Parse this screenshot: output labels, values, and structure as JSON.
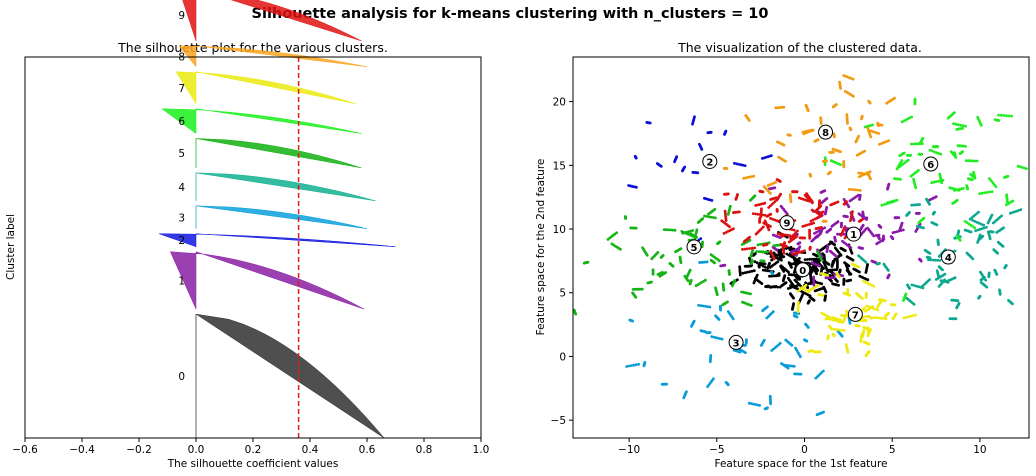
{
  "suptitle": "Silhouette analysis for k-means clustering with n_clusters = 10",
  "chart_data": [
    {
      "type": "area",
      "title": "The silhouette plot for the various clusters.",
      "xlabel": "The silhouette coefficient values",
      "ylabel": "Cluster label",
      "xlim": [
        -0.6,
        1.0
      ],
      "xticks": [
        -0.6,
        -0.4,
        -0.2,
        0.0,
        0.2,
        0.4,
        0.6,
        0.8,
        1.0
      ],
      "xtick_labels": [
        "−0.6",
        "−0.4",
        "−0.2",
        "0.0",
        "0.2",
        "0.4",
        "0.6",
        "0.8",
        "1.0"
      ],
      "yticks": "none",
      "average_silhouette": 0.36,
      "average_line_color": "#e8191c",
      "clusters": [
        {
          "label": "0",
          "color": "#303030",
          "max": 0.66,
          "min": 0.0,
          "size": 0.38
        },
        {
          "label": "1",
          "color": "#8a1fa3",
          "max": 0.59,
          "min": -0.09,
          "size": 0.176
        },
        {
          "label": "2",
          "color": "#1217e0",
          "max": 0.7,
          "min": -0.13,
          "size": 0.04
        },
        {
          "label": "3",
          "color": "#0aa0dc",
          "max": 0.6,
          "min": 0.0,
          "size": 0.07
        },
        {
          "label": "4",
          "color": "#10b090",
          "max": 0.63,
          "min": 0.0,
          "size": 0.086
        },
        {
          "label": "5",
          "color": "#10b010",
          "max": 0.58,
          "min": 0.0,
          "size": 0.09
        },
        {
          "label": "6",
          "color": "#1af01a",
          "max": 0.58,
          "min": -0.12,
          "size": 0.076
        },
        {
          "label": "7",
          "color": "#eaea10",
          "max": 0.56,
          "min": -0.07,
          "size": 0.098
        },
        {
          "label": "8",
          "color": "#fca51f",
          "max": 0.6,
          "min": -0.06,
          "size": 0.064
        },
        {
          "label": "9",
          "color": "#e01212",
          "max": 0.58,
          "min": -0.06,
          "size": 0.16
        }
      ]
    },
    {
      "type": "scatter",
      "title": "The visualization of the clustered data.",
      "xlabel": "Feature space for the 1st feature",
      "ylabel": "Feature space for the 2nd feature",
      "xlim": [
        -13.2,
        12.8
      ],
      "ylim": [
        -6.4,
        23.5
      ],
      "xticks": [
        -10,
        -5,
        0,
        5,
        10
      ],
      "xtick_labels": [
        "−10",
        "−5",
        "0",
        "5",
        "10"
      ],
      "yticks": [
        -5,
        0,
        5,
        10,
        15,
        20
      ],
      "ytick_labels": [
        "−5",
        "0",
        "5",
        "10",
        "15",
        "20"
      ],
      "clusters": [
        {
          "label": "0",
          "color": "#000000",
          "center": [
            -0.1,
            6.8
          ],
          "spread": [
            1.8,
            1.1
          ],
          "n": 700,
          "shape": "blob"
        },
        {
          "label": "1",
          "color": "#8b18a8",
          "center": [
            2.8,
            9.6
          ],
          "spread": [
            2.2,
            1.6
          ],
          "n": 380,
          "shape": "fan"
        },
        {
          "label": "2",
          "color": "#0c10d8",
          "center": [
            -5.4,
            15.3
          ],
          "spread": [
            2.0,
            2.4
          ],
          "n": 90,
          "shape": "scatter"
        },
        {
          "label": "3",
          "color": "#0a9cd8",
          "center": [
            -3.9,
            1.1
          ],
          "spread": [
            3.3,
            2.8
          ],
          "n": 260,
          "shape": "scatter"
        },
        {
          "label": "4",
          "color": "#0ca890",
          "center": [
            8.2,
            7.8
          ],
          "spread": [
            2.4,
            2.3
          ],
          "n": 340,
          "shape": "scatter"
        },
        {
          "label": "5",
          "color": "#14b414",
          "center": [
            -6.3,
            8.6
          ],
          "spread": [
            3.0,
            2.0
          ],
          "n": 320,
          "shape": "scatter"
        },
        {
          "label": "6",
          "color": "#22ec22",
          "center": [
            7.2,
            15.1
          ],
          "spread": [
            2.6,
            2.6
          ],
          "n": 320,
          "shape": "scatter"
        },
        {
          "label": "7",
          "color": "#eeea10",
          "center": [
            2.9,
            3.3
          ],
          "spread": [
            1.8,
            1.8
          ],
          "n": 300,
          "shape": "scatter"
        },
        {
          "label": "8",
          "color": "#f39a10",
          "center": [
            1.2,
            17.6
          ],
          "spread": [
            2.3,
            2.4
          ],
          "n": 260,
          "shape": "scatter"
        },
        {
          "label": "9",
          "color": "#dd1010",
          "center": [
            -1.0,
            10.5
          ],
          "spread": [
            1.8,
            1.4
          ],
          "n": 340,
          "shape": "fan"
        }
      ]
    }
  ]
}
